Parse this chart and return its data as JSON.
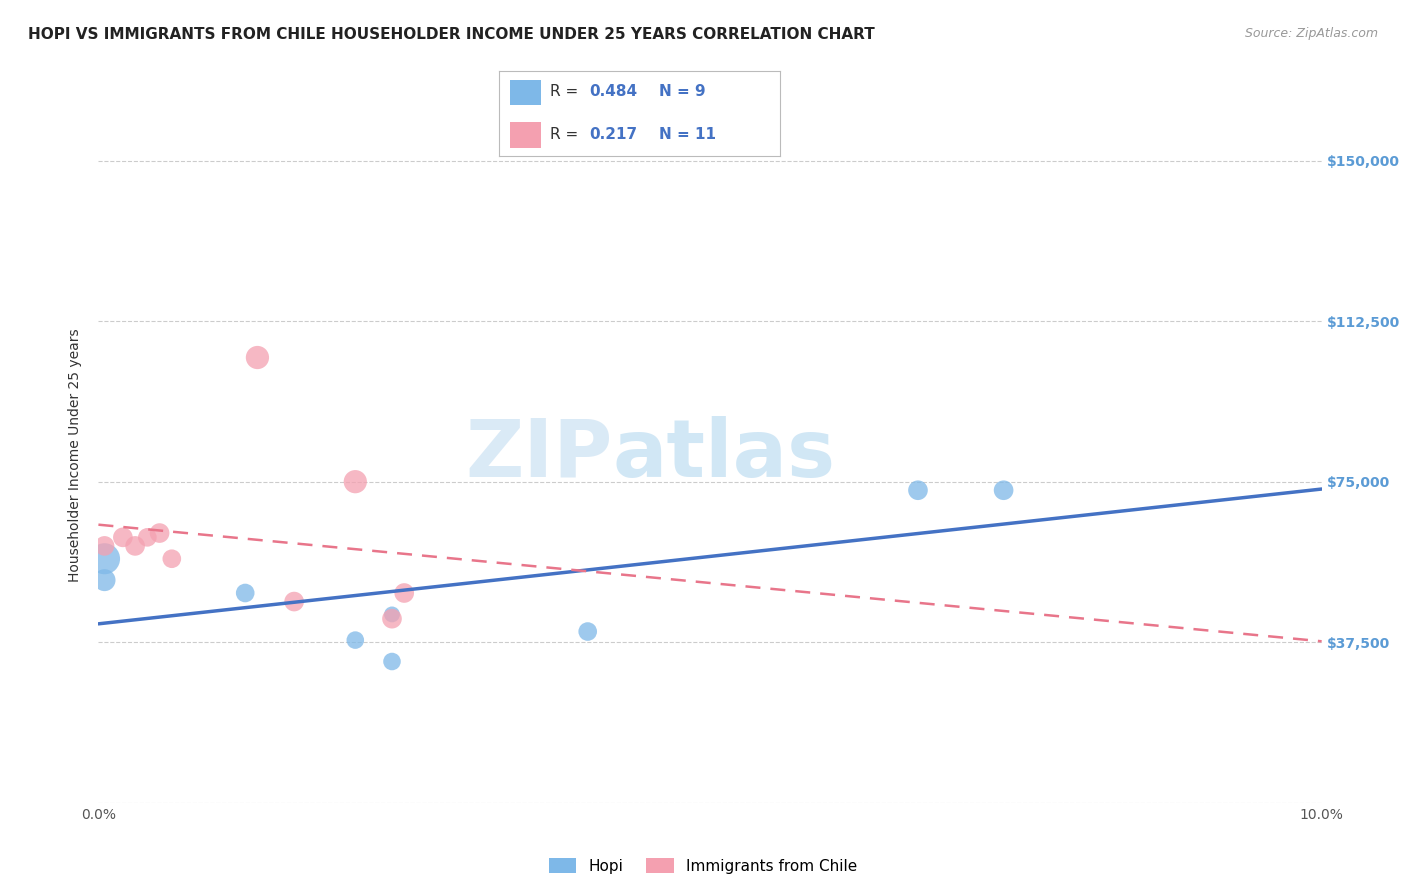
{
  "title": "HOPI VS IMMIGRANTS FROM CHILE HOUSEHOLDER INCOME UNDER 25 YEARS CORRELATION CHART",
  "source": "Source: ZipAtlas.com",
  "ylabel": "Householder Income Under 25 years",
  "hopi_color": "#7EB8E8",
  "chile_color": "#F4A0B0",
  "hopi_line_color": "#4472C4",
  "chile_line_color": "#E8758A",
  "hopi_R": 0.484,
  "hopi_N": 9,
  "chile_R": 0.217,
  "chile_N": 11,
  "xlim": [
    0.0,
    0.1
  ],
  "ylim": [
    0,
    162500
  ],
  "yticks": [
    0,
    37500,
    75000,
    112500,
    150000
  ],
  "ytick_labels": [
    "",
    "$37,500",
    "$75,000",
    "$112,500",
    "$150,000"
  ],
  "xticks": [
    0.0,
    0.02,
    0.04,
    0.06,
    0.08,
    0.1
  ],
  "xtick_labels": [
    "0.0%",
    "",
    "",
    "",
    "",
    "10.0%"
  ],
  "watermark_zip": "ZIP",
  "watermark_atlas": "atlas",
  "hopi_scatter_x": [
    0.0005,
    0.0005,
    0.012,
    0.021,
    0.024,
    0.024,
    0.04,
    0.067,
    0.074
  ],
  "hopi_scatter_y": [
    57000,
    52000,
    49000,
    38000,
    44000,
    33000,
    40000,
    73000,
    73000
  ],
  "hopi_scatter_size": [
    500,
    250,
    180,
    160,
    130,
    160,
    180,
    200,
    200
  ],
  "chile_scatter_x": [
    0.0005,
    0.002,
    0.003,
    0.004,
    0.005,
    0.006,
    0.013,
    0.016,
    0.021,
    0.024,
    0.025
  ],
  "chile_scatter_y": [
    60000,
    62000,
    60000,
    62000,
    63000,
    57000,
    104000,
    47000,
    75000,
    43000,
    49000
  ],
  "chile_scatter_size": [
    200,
    200,
    200,
    180,
    200,
    180,
    280,
    200,
    280,
    200,
    200
  ],
  "background_color": "#FFFFFF",
  "grid_color": "#CCCCCC",
  "title_fontsize": 11,
  "axis_label_fontsize": 10,
  "tick_label_fontsize": 10,
  "right_tick_color": "#5B9BD5",
  "legend_label_hopi": "Hopi",
  "legend_label_chile": "Immigrants from Chile"
}
